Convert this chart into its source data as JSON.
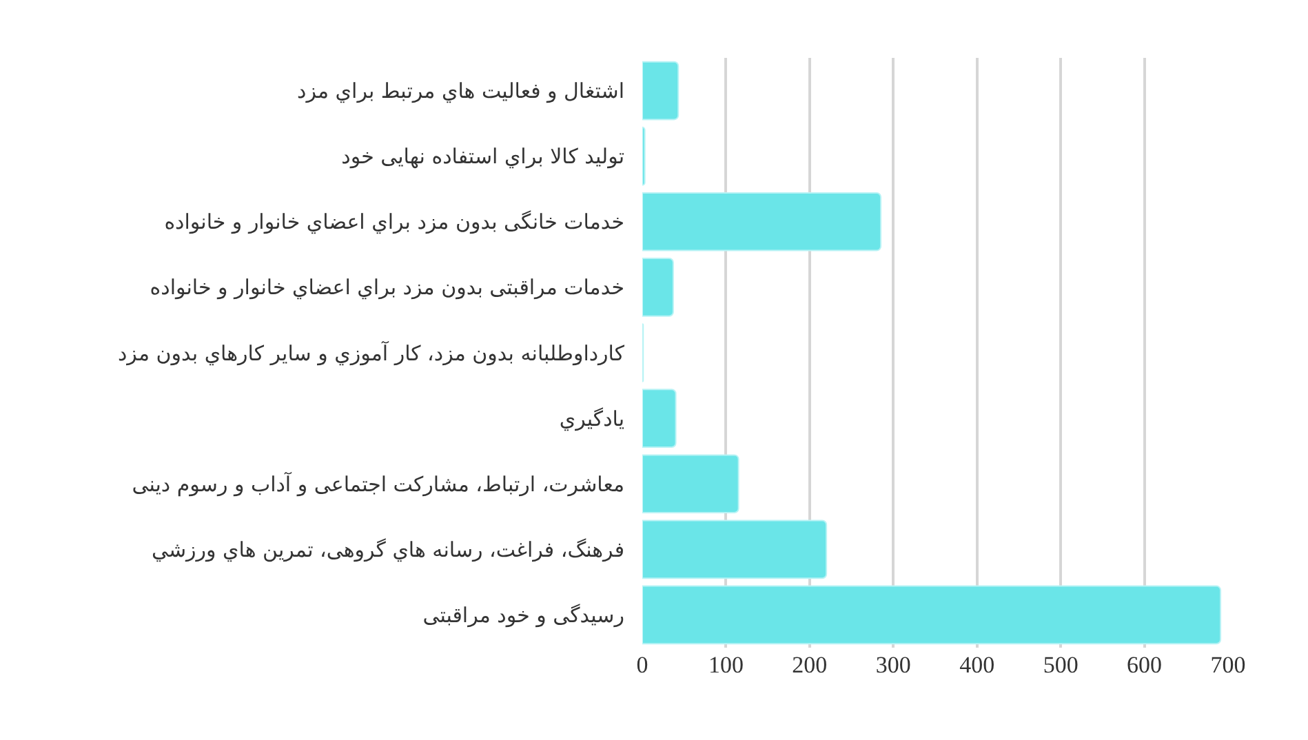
{
  "chart_data": {
    "type": "bar",
    "orientation": "horizontal",
    "categories": [
      "اشتغال و فعالیت هاي مرتبط براي مزد",
      "تولید کالا براي استفاده نهایی خود",
      "خدمات خانگی بدون مزد براي اعضاي خانوار و خانواده",
      "خدمات مراقبتی بدون مزد براي اعضاي خانوار و خانواده",
      "کارداوطلبانه بدون مزد، کار آموزي و سایر کارهاي بدون مزد",
      "يادگيري",
      "معاشرت، ارتباط، مشارکت اجتماعی و آداب و رسوم دینی",
      "فرهنگ، فراغت، رسانه هاي گروهی، تمرین هاي ورزشي",
      "رسیدگی و خود مراقبتی"
    ],
    "values": [
      43,
      3,
      285,
      37,
      1,
      40,
      115,
      220,
      691
    ],
    "color": "#6ae5e8",
    "xlim": [
      0,
      700
    ],
    "xticks": [
      0,
      100,
      200,
      300,
      400,
      500,
      600,
      700
    ],
    "grid": "x"
  }
}
